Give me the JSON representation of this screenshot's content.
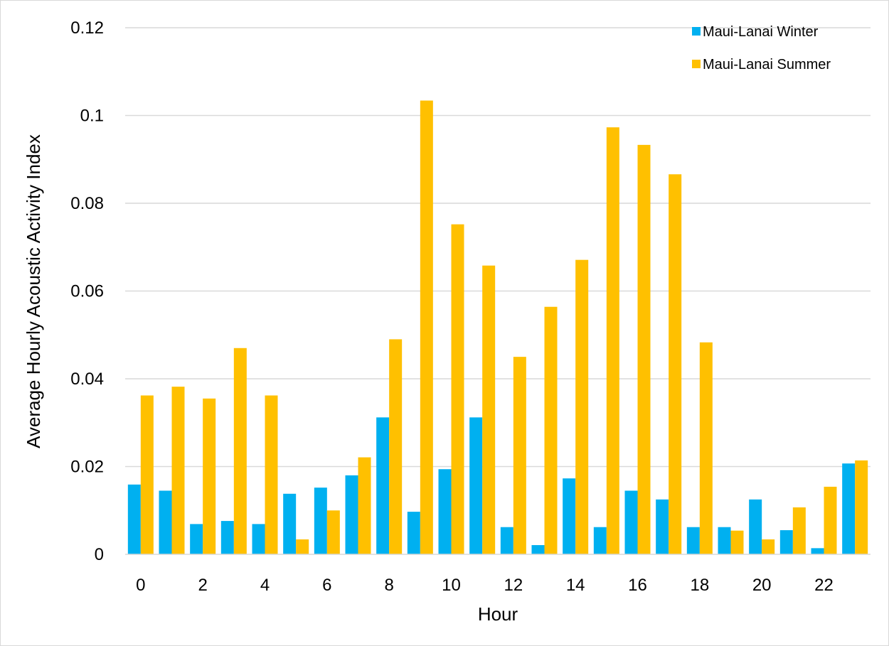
{
  "chart_data": {
    "type": "bar",
    "title": "",
    "xlabel": "Hour",
    "ylabel": "Average Hourly Acoustic Activity Index",
    "ylim": [
      0,
      0.12
    ],
    "yticks": [
      "0",
      "0.02",
      "0.04",
      "0.06",
      "0.08",
      "0.1",
      "0.12"
    ],
    "grid": true,
    "legend_position": "top-right",
    "categories": [
      "0",
      "1",
      "2",
      "3",
      "4",
      "5",
      "6",
      "7",
      "8",
      "9",
      "10",
      "11",
      "12",
      "13",
      "14",
      "15",
      "16",
      "17",
      "18",
      "19",
      "20",
      "21",
      "22",
      "23"
    ],
    "xtick_labels": [
      "0",
      "",
      "2",
      "",
      "4",
      "",
      "6",
      "",
      "8",
      "",
      "10",
      "",
      "12",
      "",
      "14",
      "",
      "16",
      "",
      "18",
      "",
      "20",
      "",
      "22",
      ""
    ],
    "series": [
      {
        "name": "Maui-Lanai Winter",
        "color": "#00B0F0",
        "values": [
          0.0159,
          0.0145,
          0.0069,
          0.0076,
          0.0069,
          0.0138,
          0.0152,
          0.018,
          0.0312,
          0.0097,
          0.0194,
          0.0312,
          0.0062,
          0.0021,
          0.0173,
          0.0062,
          0.0145,
          0.0125,
          0.0062,
          0.0062,
          0.0125,
          0.0055,
          0.0014,
          0.0207
        ]
      },
      {
        "name": "Maui-Lanai Summer",
        "color": "#FFC000",
        "values": [
          0.0362,
          0.0382,
          0.0355,
          0.047,
          0.0362,
          0.0034,
          0.01,
          0.0221,
          0.049,
          0.1034,
          0.0752,
          0.0658,
          0.045,
          0.0564,
          0.0671,
          0.0973,
          0.0933,
          0.0866,
          0.0483,
          0.0054,
          0.0034,
          0.0107,
          0.0154,
          0.0214
        ]
      }
    ]
  }
}
